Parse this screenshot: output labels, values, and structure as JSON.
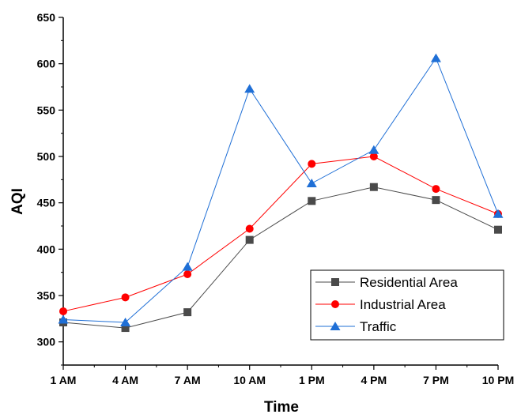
{
  "chart_data": {
    "type": "line",
    "title": "",
    "xlabel": "Time",
    "ylabel": "AQI",
    "categories": [
      "1 AM",
      "4 AM",
      "7 AM",
      "10 AM",
      "1 PM",
      "4 PM",
      "7 PM",
      "10 PM"
    ],
    "ylim": [
      275,
      650
    ],
    "yticks": [
      300,
      350,
      400,
      450,
      500,
      550,
      600,
      650
    ],
    "grid": false,
    "legend_position": "bottom-right",
    "series": [
      {
        "name": "Residential Area",
        "color": "#4a4a4a",
        "marker": "square",
        "values": [
          321,
          315,
          332,
          410,
          452,
          467,
          453,
          421
        ]
      },
      {
        "name": "Industrial Area",
        "color": "#ff0000",
        "marker": "circle",
        "values": [
          333,
          348,
          373,
          422,
          492,
          500,
          465,
          438
        ]
      },
      {
        "name": "Traffic",
        "color": "#1f6fd6",
        "marker": "triangle",
        "values": [
          324,
          321,
          381,
          573,
          471,
          507,
          606,
          438
        ]
      }
    ]
  }
}
